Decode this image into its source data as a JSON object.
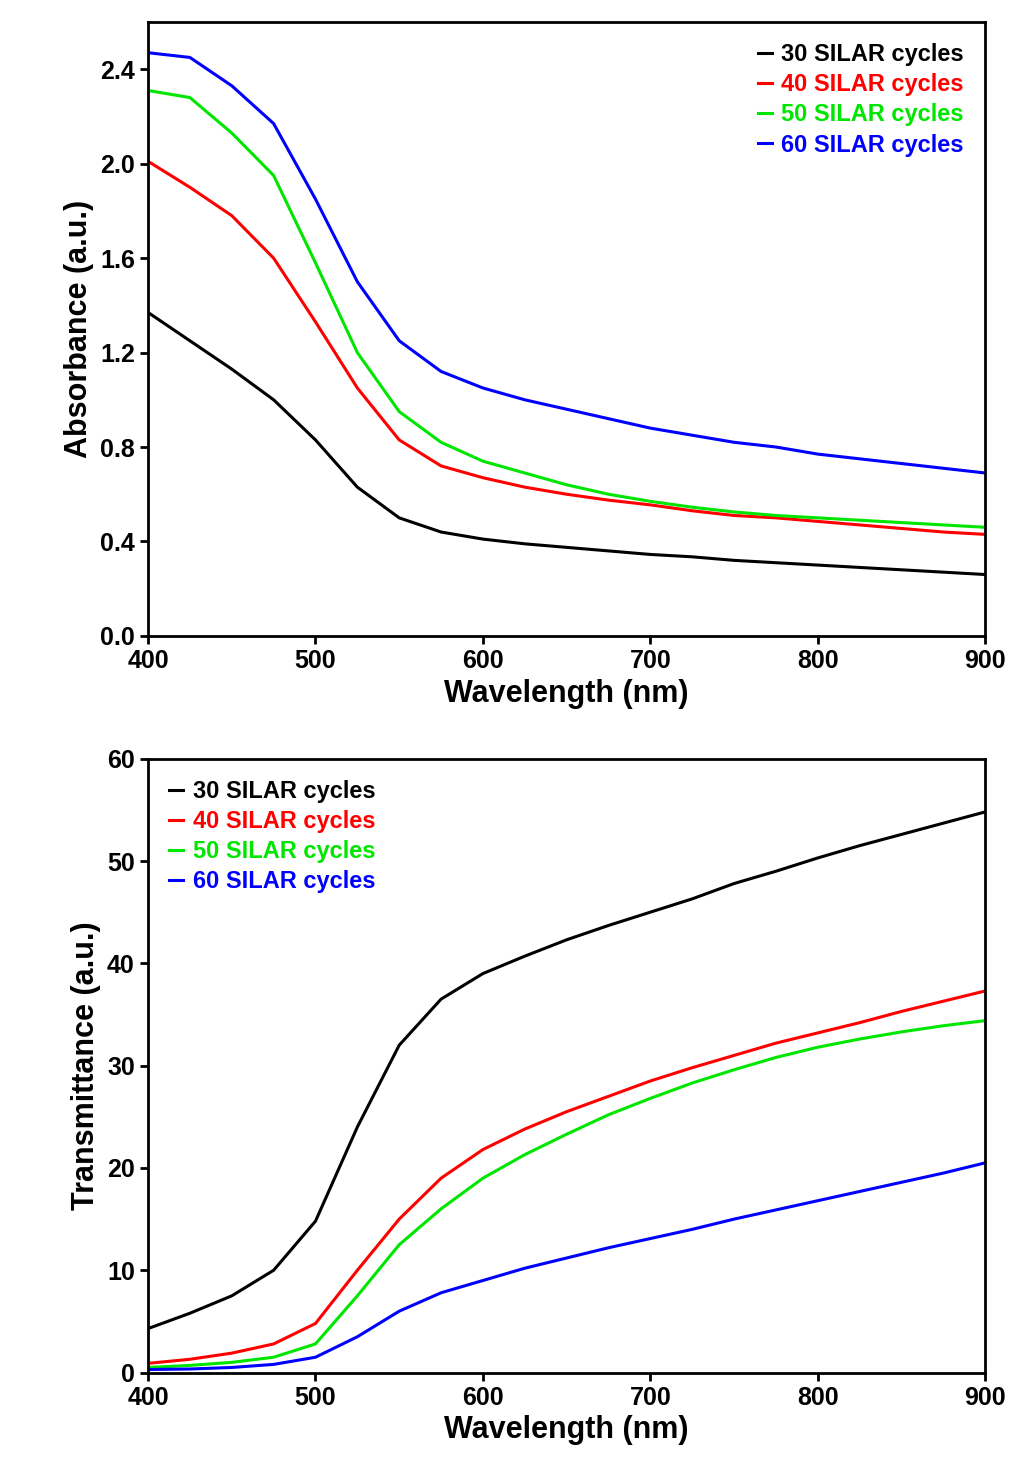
{
  "chart_data": [
    {
      "type": "line",
      "x_label": "Wavelength (nm)",
      "y_label": "Absorbance (a.u.)",
      "x": [
        400,
        425,
        450,
        475,
        500,
        525,
        550,
        575,
        600,
        625,
        650,
        675,
        700,
        725,
        750,
        775,
        800,
        825,
        850,
        875,
        900
      ],
      "xlim": [
        400,
        900
      ],
      "xticks": [
        400,
        500,
        600,
        700,
        800,
        900
      ],
      "ylim": [
        0.0,
        2.6
      ],
      "yticks": [
        0.0,
        0.4,
        0.8,
        1.2,
        1.6,
        2.0,
        2.4
      ],
      "legend": "upper right",
      "series": [
        {
          "name": "30 SILAR cycles",
          "color": "#000000",
          "values": [
            1.37,
            1.25,
            1.13,
            1.0,
            0.83,
            0.63,
            0.5,
            0.44,
            0.41,
            0.39,
            0.375,
            0.36,
            0.345,
            0.335,
            0.32,
            0.31,
            0.3,
            0.29,
            0.28,
            0.27,
            0.26
          ]
        },
        {
          "name": "40 SILAR cycles",
          "color": "#ff0000",
          "values": [
            2.01,
            1.9,
            1.78,
            1.6,
            1.33,
            1.05,
            0.83,
            0.72,
            0.67,
            0.63,
            0.6,
            0.575,
            0.555,
            0.53,
            0.51,
            0.5,
            0.485,
            0.47,
            0.455,
            0.44,
            0.43
          ]
        },
        {
          "name": "50 SILAR cycles",
          "color": "#00e600",
          "values": [
            2.31,
            2.28,
            2.13,
            1.95,
            1.58,
            1.2,
            0.95,
            0.82,
            0.74,
            0.69,
            0.64,
            0.6,
            0.57,
            0.545,
            0.525,
            0.51,
            0.5,
            0.49,
            0.48,
            0.47,
            0.46
          ]
        },
        {
          "name": "60 SILAR cycles",
          "color": "#0000ff",
          "values": [
            2.47,
            2.45,
            2.33,
            2.17,
            1.85,
            1.5,
            1.25,
            1.12,
            1.05,
            1.0,
            0.96,
            0.92,
            0.88,
            0.85,
            0.82,
            0.8,
            0.77,
            0.75,
            0.73,
            0.71,
            0.69
          ]
        }
      ]
    },
    {
      "type": "line",
      "x_label": "Wavelength (nm)",
      "y_label": "Transmittance (a.u.)",
      "x": [
        400,
        425,
        450,
        475,
        500,
        525,
        550,
        575,
        600,
        625,
        650,
        675,
        700,
        725,
        750,
        775,
        800,
        825,
        850,
        875,
        900
      ],
      "xlim": [
        400,
        900
      ],
      "xticks": [
        400,
        500,
        600,
        700,
        800,
        900
      ],
      "ylim": [
        0,
        60
      ],
      "yticks": [
        0,
        10,
        20,
        30,
        40,
        50,
        60
      ],
      "legend": "upper left",
      "series": [
        {
          "name": "30 SILAR cycles",
          "color": "#000000",
          "values": [
            4.3,
            5.8,
            7.5,
            10,
            14.8,
            24,
            32,
            36.5,
            39,
            40.7,
            42.3,
            43.7,
            45,
            46.3,
            47.8,
            49,
            50.3,
            51.5,
            52.6,
            53.7,
            54.8
          ]
        },
        {
          "name": "40 SILAR cycles",
          "color": "#ff0000",
          "values": [
            0.9,
            1.3,
            1.9,
            2.8,
            4.8,
            10,
            15,
            19,
            21.8,
            23.8,
            25.5,
            27,
            28.5,
            29.8,
            31,
            32.2,
            33.2,
            34.2,
            35.3,
            36.3,
            37.3
          ]
        },
        {
          "name": "50 SILAR cycles",
          "color": "#00e600",
          "values": [
            0.5,
            0.7,
            1,
            1.5,
            2.8,
            7.5,
            12.5,
            16,
            19,
            21.3,
            23.3,
            25.2,
            26.8,
            28.3,
            29.6,
            30.8,
            31.8,
            32.6,
            33.3,
            33.9,
            34.4
          ]
        },
        {
          "name": "60 SILAR cycles",
          "color": "#0000ff",
          "values": [
            0.3,
            0.35,
            0.5,
            0.8,
            1.5,
            3.5,
            6,
            7.8,
            9,
            10.2,
            11.2,
            12.2,
            13.1,
            14,
            15,
            15.9,
            16.8,
            17.7,
            18.6,
            19.5,
            20.5
          ]
        }
      ]
    }
  ]
}
